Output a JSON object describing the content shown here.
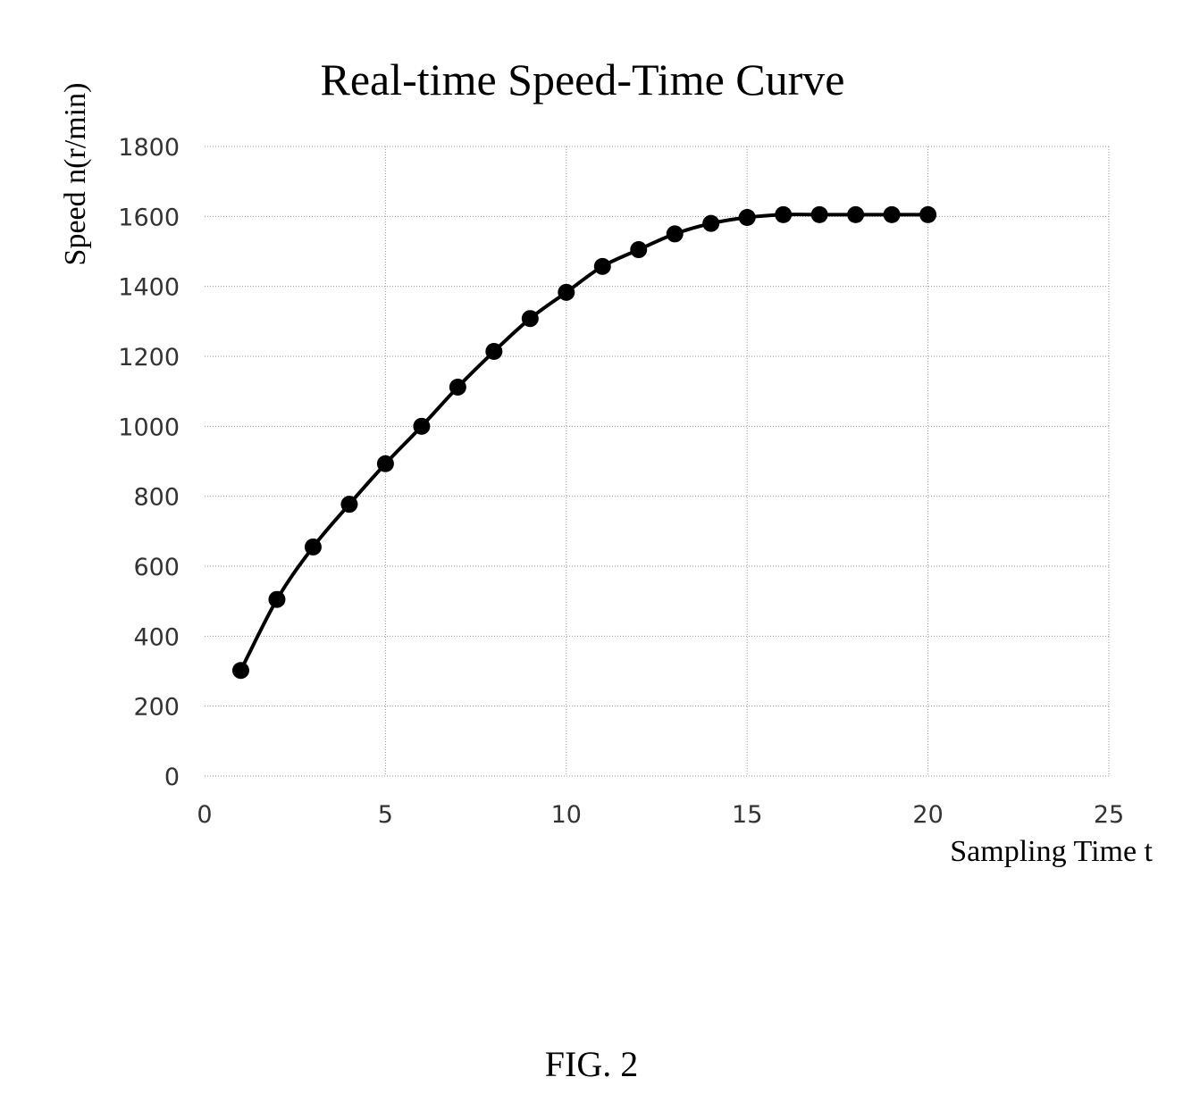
{
  "chart_data": {
    "type": "line",
    "title": "Real-time Speed-Time Curve",
    "xlabel": "Sampling Time t",
    "ylabel": "Speed n(r/min)",
    "xlim": [
      0,
      25
    ],
    "ylim": [
      0,
      1800
    ],
    "xticks": [
      0,
      5,
      10,
      15,
      20,
      25
    ],
    "yticks": [
      0,
      200,
      400,
      600,
      800,
      1000,
      1200,
      1400,
      1600,
      1800
    ],
    "grid": true,
    "legend": "none",
    "x": [
      1,
      2,
      3,
      4,
      5,
      6,
      7,
      8,
      9,
      10,
      11,
      12,
      13,
      14,
      15,
      16,
      17,
      18,
      19,
      20
    ],
    "series": [
      {
        "values": [
          302,
          505,
          655,
          777,
          893,
          1000,
          1112,
          1214,
          1308,
          1383,
          1457,
          1505,
          1550,
          1580,
          1597,
          1605,
          1605,
          1605,
          1605,
          1605
        ],
        "color": "#000000",
        "marker": "circle"
      }
    ]
  },
  "caption": "FIG. 2"
}
